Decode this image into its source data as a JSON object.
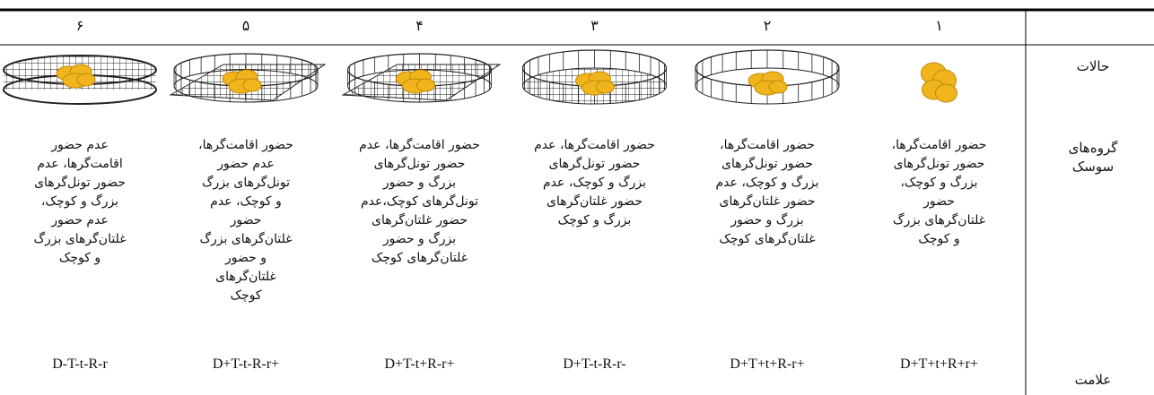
{
  "table": {
    "row_labels": {
      "states": "حالات",
      "groups": [
        "گروه‌های",
        "سوسک"
      ],
      "code": "علامت"
    },
    "columns": [
      {
        "number": "۱",
        "lines": [
          "حضور اقامت‌گرها،",
          "حضور تونل‌گرهای",
          "بزرگ و کوچک،",
          "حضور",
          "غلتان‌گرهای بزرگ",
          "و کوچک"
        ],
        "code": "D+T+t+R+r+"
      },
      {
        "number": "۲",
        "lines": [
          "حضور اقامت‌گرها،",
          "حضور تونل‌گرهای",
          "بزرگ و کوچک، عدم",
          "حضور غلتان‌گرهای",
          "بزرگ و حضور",
          "غلتان‌گرهای کوچک"
        ],
        "code": "D+T+t+R-r+"
      },
      {
        "number": "۳",
        "lines": [
          "حضور اقامت‌گرها، عدم",
          "حضور تونل‌گرهای",
          "بزرگ و کوچک، عدم",
          "حضور غلتان‌گرهای",
          "بزرگ و کوچک"
        ],
        "code": "D+T-t-R-r-"
      },
      {
        "number": "۴",
        "lines": [
          "حضور اقامت‌گرها، عدم",
          "حضور تونل‌گرهای",
          "بزرگ و حضور",
          "تونل‌گرهای کوچک،عدم",
          "حضور غلتان‌گرهای",
          "بزرگ و حضور",
          "غلتان‌گرهای کوچک"
        ],
        "code": "D+T-t+R-r+"
      },
      {
        "number": "۵",
        "lines": [
          "حضور اقامت‌گرها،",
          "عدم حضور",
          "تونل‌گرهای بزرگ",
          "و کوچک، عدم",
          "حضور",
          "غلتان‌گرهای بزرگ",
          "و حضور",
          "غلتان‌گرهای",
          "کوچک"
        ],
        "code": "D+T-t-R-r+"
      },
      {
        "number": "۶",
        "lines": [
          "عدم حضور",
          "اقامت‌گرها، عدم",
          "حضور تونل‌گرهای",
          "بزرگ و کوچک،",
          "عدم حضور",
          "غلتان‌گرهای بزرگ",
          "و کوچک"
        ],
        "code": "D-T-t-R-r"
      }
    ]
  }
}
